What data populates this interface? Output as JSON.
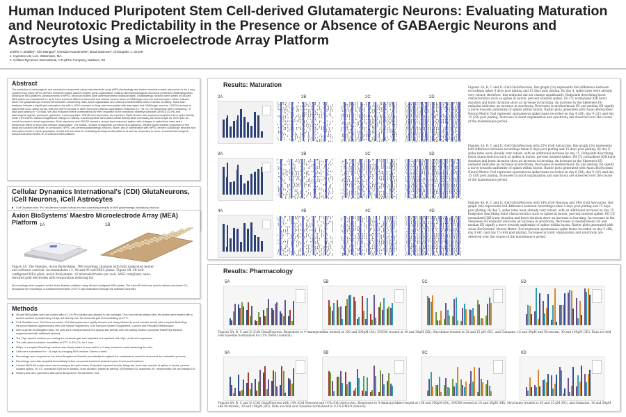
{
  "header": {
    "title": "Human Induced Pluripotent Stem Cell-derived Glutamatergic Neurons: Evaluating Maturation and Neurotoxic Predictability in the Presence or Absence of GABAergic Neurons and Astrocytes Using a Microelectrode Array Platform",
    "authors": "Jenifer A. Bradley¹, Kile Mangan², Christian Kannemeier², Brad Swanson², Christopher J. Strock¹",
    "aff1": "1.   Cyprotex US, LLC. Watertown, MA.",
    "aff2": "2.   Cellular Dynamics International, A FujiFilm Company, Madison, WI"
  },
  "abstract": {
    "heading": "Abstract",
    "text": "The prediction of seizurogenic and neurotoxic compounds using microelectrode array (MEA) technology and rodent neuronal models has proven to be a very powerful tool. Early hiPSC derived neuronal models lacked complex burst organization, making electrophysiological neurotoxic prediction challenging when utilizing an MEA platform. Advancements in hiPSC neuronal models have addressed these disadvantages. Glutamatergic neurons were plated on 48-well MEA plates and maintained for up to three weeks at different ratios with and without various ratios of GABAergic neurons and astrocytes. When cultured alone, the glutamatergic neurons demonstrate robust firing rates, burst organization and network characteristics within 2 weeks of plating. Spike train analyses indicate a significant maturation rate with a 100% increase in firing rate when plated with astrocytes and GABAergic neurons, 1200% increase in spikes that occur within bursts, and 200-400% increase in other burst and network organization endpoints (i.e. ISI CV, ISI Skewness) when comparing ~5 days post plating to ~15 days. We also evaluated these combinations for their response to the neurotoxic dimethyl sulfoxide (DMSO) (0.3%) and seizurogenic agents, picrotoxin, gabazine, 4-aminopyridine, SNC80 and strychnine. As expected, 10µM domoic acid caused a complete loss in spike activity while 0.3% DMSO caused insignificant changes in activity. 4-aminopyridine decreased overall activity while increasing the burst length by 100% with an overall increase in burst organization. Both strychnine and SNC80 caused a unique dose response pattern with changes in spike/burst rates and a deleterious effect on burst and network organization. The GABA, receptor antagonists, picrotoxin and gabazine, elicited hyperexcitable responses in this study and caused cell death. In conclusion, hiPSC cell-derived glutamatergic neurons, alone, and in combination with hiPSC derived GABAergic neurons and astrocytes create a robust population of cells that are ideal for evaluating developmental patterns as well as responses to some neurotoxic/seizurogenic compounds when tested on a multi-well MEA platform."
  },
  "cdi": {
    "heading": "Cellular Dynamics International's (CDI) GlutaNeurons, iCell Neurons, iCell Astrocytes",
    "items": [
      "iCell GlutaNeurons:  iPS cell-derived human cortical neurons consisting primarily of 80% glutamatergic (excitatory) neurons.",
      "iCell Neurons:  iPS cell-derived mixed populations of human cortical neurons consisting of 85% GABAergic (inhibitory) neurons.",
      "iCell Astrocytes: iPS cell-derived human astrocytes (>95% pure astrocytes)."
    ]
  },
  "mea": {
    "heading": "Axion BioSystems' Maestro Microelectrode Array (MEA) Platform",
    "label_a": "1A",
    "label_b": "1B",
    "caption": "Figure 1A. The Maestro, Axion BioSystems. 768 recording channels with fully integrated heater and software controls. Accommodates 12, 48 and 96 well MEA plates. Figure 1B. 48-well configured MEA plate, Axion BioSystems. 16 microelectrodes per well, ANSI compliant, nano-textured gold electrodes with evaporation reducing lid.",
    "note": "All recordings were acquired on the Axion Maestro platform using 48-well configured MEA plates. The Axion BCmini was used to deliver pre-mixed CO₂ throughout the recordings. A constant temperature of 37°C was maintained through the software controller."
  },
  "methods": {
    "heading": "Methods",
    "items": [
      "48-well MEA plates were pre-coated with a 0.1% PEI solution and allowed to dry overnight. One hour before plating cells, the plates were treated with a laminin solution by dispensing a 10µL dot directly over the electrode grid and incubating at 37°C.",
      "iCell GlutaNeurons, iCell Neurons and/or iCell Astrocytes were rapidly thawed and slowly diluted (to avoid osmotic shock) with complete BrainPhys Neuronal Medium supplemented with iCell Neural Supplement, iCell Nervous System Supplement, Laminin and Penicillin/Streptomycin.",
      "After a gentle centrifugation step, the cells were resuspended at the appropriate density with cell dotting medium (complete BrainPhys Medium supplemented with additional laminin).",
      "The 10µL laminin solution pre-coating the electrode grid was aspirated and replaced with 10µL of the cell suspension.",
      "The cells were incubated, humidified at 37°C in 5% CO₂ for 1 hour.",
      "500µL of complete BrainPhys medium was slowly added to each well in a 2-step process to avoid detaching the cells.",
      "Cells were maintained for ~14 days by changing 50% medium 3 times a week.",
      "Recordings were acquired on the Axion Biosystems' Maestro periodically throughout the maintenance period to document the maturation process.",
      "Recordings were also acquired immediately before compound treatment (baseline) and 1 hour post treatment.",
      "Custom MATLAB scripts were used to analyze the spike trains. Endpoints reported include: firing rate, burst rate, number of spikes in bursts, percent isolated spikes, ISI CV, normalized IQR burst duration, burst duration, interburst interval, IQR/median ISI, skewness ISI, mean/median ISI and median ISI.",
      "Raster plots were generated with Axion BioSystems' Neural Metric Tool."
    ]
  },
  "maturation": {
    "heading": "Results: Maturation",
    "labels": [
      "2A",
      "2B",
      "2C",
      "2D",
      "3A",
      "3B",
      "3C",
      "3D",
      "4A",
      "4B",
      "4C",
      "4D"
    ],
    "cap2": "Figures 2A, B, C and D. iCell GlutaNeurons. Bar graph (2A) represents fold difference between recordings taken 4 days post plating and 15 days post plating. By day 4, spike rates were already very robust, therefore, this endpoint did not change significantly. Endpoints describing burst characteristics such as spikes in bursts, percent isolated spikes, ISI CV, normalized IQR burst duration and burst duration show an increase in bursting. An increase in the Skewness ISI endpoint indicates an increase in synchrony. Decreases in median/mean ISI and median ISI signify a move towards uniformity of spikes within bursts. Raster plots generated with Axion BioSystems' Neural Metric Tool represent spontaneous spike trains recorded on day 4 (2B), day 9 (2C) and day 15 (2D) post plating. Increases in burst organization and synchrony are observed over the course of the maintenance period.",
    "cap3": "Figures 3A, B, C and D. iCell GlutaNeurons with 25% iCell Astrocytes. Bar graph (3A) represents fold difference between recordings taken 6 days post plating and 15 days post plating. By day 6, spike rates were already very robust, with an additional increase by day 15. Endpoints describing burst characteristics such as spikes in bursts, percent isolated spikes, ISI CV, normalized IQR burst duration and burst duration show an increase in bursting. An increase in the Skewness ISI endpoint indicates an increase in synchrony. Decreases in median/mean ISI and median ISI signify a move towards uniformity of spikes within bursts. Raster plots generated with Axion BioSystems' Neural Metric Tool represent spontaneous spike trains recorded on day 6 (3B), day 9 (3C) and day 15 (3D) post plating. Increases in burst organization and synchrony are observed over the course of the maintenance period.",
    "cap4": "Figures 4A, B, C and D. iCell GlutaNeurons with 14% iCell Neurons and 14% iCell Astrocytes. Bar graph (4A) represents fold difference between recordings taken 5 days post plating and 15 days post plating. By day 5, spike rates were already very robust, with an additional increase by day 15. Endpoints describing burst characteristics such as spikes in bursts, percent isolated spikes, ISI CV, normalized IQR burst duration and burst duration show an increase in bursting. An increase in the Skewness ISI endpoint indicates an increase in synchrony. Decreases in median/mean ISI and median ISI signify a move towards uniformity of spikes within bursts. Raster plots generated with Axion BioSystems' Neural Metric Tool represent spontaneous spike trains recorded on day 5 (4B), day 9 (4C) and day 15 (4D) post plating. Increases in burst organization and synchrony are observed over the course of the maintenance period."
  },
  "pharmacology": {
    "heading": "Results: Pharmacology",
    "labels_top": [
      "5A",
      "5B",
      "5C",
      "5D"
    ],
    "labels_bottom": [
      "6A",
      "6B",
      "6C",
      "6D"
    ],
    "cap5": "Figures 5A, B, C and D. iCell GlutaNeurons. Responses to 4-Aminopyridine treated at 100 and 300µM (5A), SNC80 treated at 10 and 30µM (5B), Strychnine treated at 30 and 15 µM (5C), and Gabazine, 10 and 30µM and Picrotoxin, 30 and 100µM (5D). Data are fold over baseline normalized to 0.1% DMSO (vehicle).",
    "cap6": "Figures 6A, B, C and D. iCell GlutaNeurons with 14% iCell Neurons and 14% iCell Astrocytes. Responses to 4-Aminopyridine treated at 100 and 300µM (6A), SNC80 treated at 10 and 30µM (6B), Strychnine treated at 30 and 15 µM (6C), and Gabazine, 10 and 30µM and Picrotoxin, 30 and 100µM (6D). Data are fold over baseline normalized to 0.1% DMSO (vehicle)."
  },
  "colors": {
    "accent": "#2b5aa8",
    "series": [
      "#2c4f8f",
      "#a33a2e",
      "#6f9a3a",
      "#6a4e8f",
      "#2f9bb0",
      "#d7872b"
    ]
  }
}
